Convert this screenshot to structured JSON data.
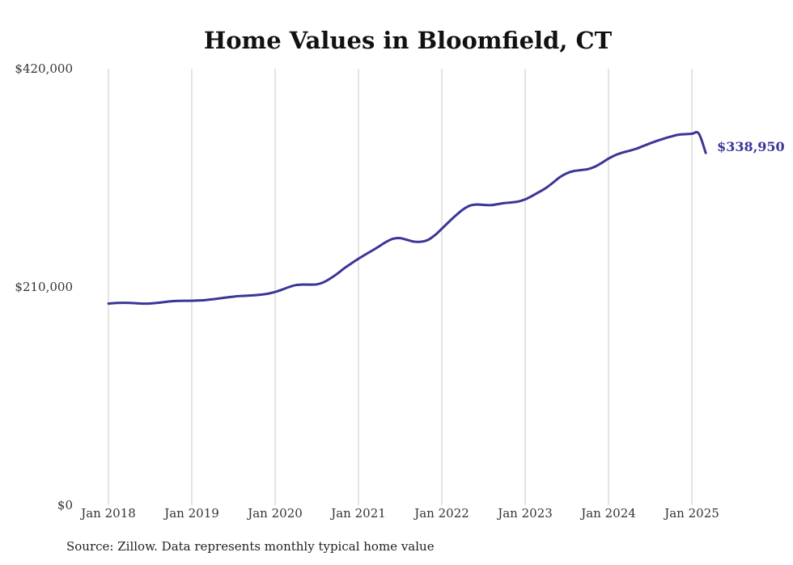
{
  "chart_data": {
    "type": "line",
    "title": "Home Values in Bloomfield, CT",
    "xlabel": "",
    "ylabel": "",
    "y_ticks": [
      {
        "value": 0,
        "label": "$0"
      },
      {
        "value": 210000,
        "label": "$210,000"
      },
      {
        "value": 420000,
        "label": "$420,000"
      }
    ],
    "ylim": [
      0,
      420000
    ],
    "x_ticks": [
      "Jan 2018",
      "Jan 2019",
      "Jan 2020",
      "Jan 2021",
      "Jan 2022",
      "Jan 2023",
      "Jan 2024",
      "Jan 2025"
    ],
    "xlim": [
      "2018-01",
      "2025-03"
    ],
    "grid": "vertical",
    "line_color": "#3b3597",
    "series": [
      {
        "x": [
          "2018-01",
          "2018-02",
          "2018-03",
          "2018-04",
          "2018-05",
          "2018-06",
          "2018-07",
          "2018-08",
          "2018-09",
          "2018-10",
          "2018-11",
          "2018-12",
          "2019-01",
          "2019-02",
          "2019-03",
          "2019-04",
          "2019-05",
          "2019-06",
          "2019-07",
          "2019-08",
          "2019-09",
          "2019-10",
          "2019-11",
          "2019-12",
          "2020-01",
          "2020-02",
          "2020-03",
          "2020-04",
          "2020-05",
          "2020-06",
          "2020-07",
          "2020-08",
          "2020-09",
          "2020-10",
          "2020-11",
          "2020-12",
          "2021-01",
          "2021-02",
          "2021-03",
          "2021-04",
          "2021-05",
          "2021-06",
          "2021-07",
          "2021-08",
          "2021-09",
          "2021-10",
          "2021-11",
          "2021-12",
          "2022-01",
          "2022-02",
          "2022-03",
          "2022-04",
          "2022-05",
          "2022-06",
          "2022-07",
          "2022-08",
          "2022-09",
          "2022-10",
          "2022-11",
          "2022-12",
          "2023-01",
          "2023-02",
          "2023-03",
          "2023-04",
          "2023-05",
          "2023-06",
          "2023-07",
          "2023-08",
          "2023-09",
          "2023-10",
          "2023-11",
          "2023-12",
          "2024-01",
          "2024-02",
          "2024-03",
          "2024-04",
          "2024-05",
          "2024-06",
          "2024-07",
          "2024-08",
          "2024-09",
          "2024-10",
          "2024-11",
          "2024-12",
          "2025-01",
          "2025-02",
          "2025-03"
        ],
        "values": [
          194000,
          194500,
          194700,
          194600,
          194300,
          194000,
          194100,
          194600,
          195400,
          196200,
          196600,
          196700,
          196700,
          197000,
          197400,
          198100,
          199000,
          199900,
          200700,
          201300,
          201600,
          202000,
          202600,
          203600,
          205200,
          207400,
          209900,
          211800,
          212300,
          212200,
          212500,
          214600,
          218400,
          223000,
          228200,
          232800,
          237100,
          241200,
          245100,
          249200,
          253400,
          256400,
          257000,
          255300,
          253600,
          253500,
          255200,
          259800,
          266000,
          272500,
          278700,
          284300,
          288100,
          289300,
          288900,
          288700,
          289600,
          290700,
          291300,
          292200,
          294300,
          297600,
          301300,
          305300,
          310300,
          315700,
          319400,
          321500,
          322400,
          323300,
          325600,
          329300,
          333500,
          336900,
          339300,
          341000,
          343000,
          345600,
          348200,
          350600,
          352800,
          354700,
          356400,
          357000,
          357400,
          357600,
          338950
        ],
        "end_label": "$338,950"
      }
    ]
  },
  "source_note": "Source: Zillow. Data represents monthly typical home value"
}
